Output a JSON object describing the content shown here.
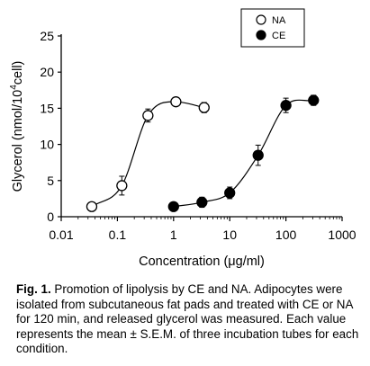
{
  "chart_data": {
    "type": "scatter",
    "xlabel": "Concentration (μg/ml)",
    "ylabel": {
      "base": "Glycerol (nmol/10",
      "sup": "4",
      "tail": "cell)"
    },
    "xscale": "log",
    "xlim": [
      0.01,
      1000
    ],
    "ylim": [
      0,
      25
    ],
    "xticks": [
      {
        "value": 0.01,
        "label": "0.01"
      },
      {
        "value": 0.1,
        "label": "0.1"
      },
      {
        "value": 1,
        "label": "1"
      },
      {
        "value": 10,
        "label": "10"
      },
      {
        "value": 100,
        "label": "100"
      },
      {
        "value": 1000,
        "label": "1000"
      }
    ],
    "yticks": [
      {
        "value": 0,
        "label": "0"
      },
      {
        "value": 5,
        "label": "5"
      },
      {
        "value": 10,
        "label": "10"
      },
      {
        "value": 15,
        "label": "15"
      },
      {
        "value": 20,
        "label": "20"
      },
      {
        "value": 25,
        "label": "25"
      }
    ],
    "grid": false,
    "legend_position": "top-right",
    "series": [
      {
        "name": "NA",
        "marker": "open-circle",
        "color": "#000000",
        "points": [
          {
            "x": 0.035,
            "y": 1.4,
            "err": 0.3
          },
          {
            "x": 0.12,
            "y": 4.3,
            "err": 1.3
          },
          {
            "x": 0.35,
            "y": 14.0,
            "err": 0.9
          },
          {
            "x": 1.1,
            "y": 15.9,
            "err": 0.4
          },
          {
            "x": 3.5,
            "y": 15.1,
            "err": 0.7
          }
        ]
      },
      {
        "name": "CE",
        "marker": "filled-circle",
        "color": "#000000",
        "points": [
          {
            "x": 1.0,
            "y": 1.4,
            "err": 0.3
          },
          {
            "x": 3.2,
            "y": 2.0,
            "err": 0.7
          },
          {
            "x": 10,
            "y": 3.3,
            "err": 0.8
          },
          {
            "x": 32,
            "y": 8.5,
            "err": 1.4
          },
          {
            "x": 100,
            "y": 15.4,
            "err": 1.0
          },
          {
            "x": 310,
            "y": 16.1,
            "err": 0.7
          }
        ]
      }
    ]
  },
  "caption": {
    "label": "Fig. 1.",
    "text": " Promotion of lipolysis by CE and NA. Adipocytes were isolated from subcutaneous fat pads and treated with CE or NA for 120 min, and released glycerol was measured. Each value represents the mean ± S.E.M. of three incubation tubes for each condition."
  }
}
